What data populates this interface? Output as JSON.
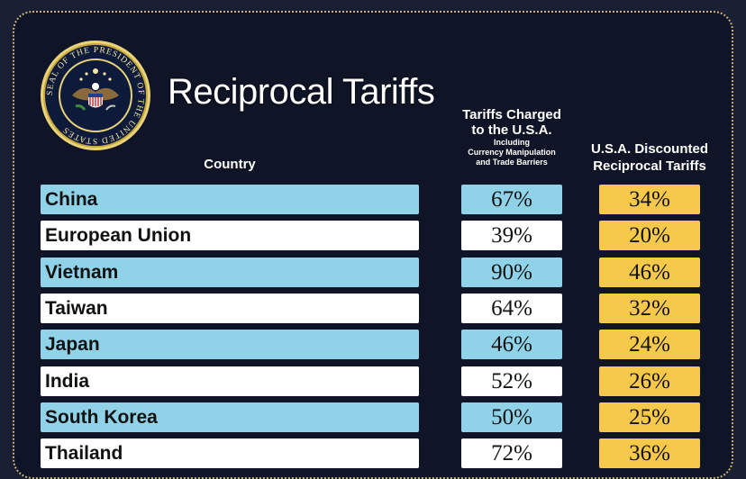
{
  "title": "Reciprocal Tariffs",
  "seal": {
    "outer_text": "SEAL OF THE PRESIDENT OF THE UNITED STATES",
    "icon": "presidential-seal-icon"
  },
  "headers": {
    "country": "Country",
    "charged_line1": "Tariffs Charged",
    "charged_line2": "to the U.S.A.",
    "charged_small1": "Including",
    "charged_small2": "Currency Manipulation",
    "charged_small3": "and Trade Barriers",
    "recip_line1": "U.S.A. Discounted",
    "recip_line2": "Reciprocal Tariffs"
  },
  "colors": {
    "background": "#0f1426",
    "row_blue": "#90d2e8",
    "row_white": "#ffffff",
    "recip_yellow": "#f7c94a",
    "border_dotted": "#c7b37a"
  },
  "rows": [
    {
      "country": "China",
      "charged": "67%",
      "reciprocal": "34%"
    },
    {
      "country": "European Union",
      "charged": "39%",
      "reciprocal": "20%"
    },
    {
      "country": "Vietnam",
      "charged": "90%",
      "reciprocal": "46%"
    },
    {
      "country": "Taiwan",
      "charged": "64%",
      "reciprocal": "32%"
    },
    {
      "country": "Japan",
      "charged": "46%",
      "reciprocal": "24%"
    },
    {
      "country": "India",
      "charged": "52%",
      "reciprocal": "26%"
    },
    {
      "country": "South Korea",
      "charged": "50%",
      "reciprocal": "25%"
    },
    {
      "country": "Thailand",
      "charged": "72%",
      "reciprocal": "36%"
    }
  ]
}
